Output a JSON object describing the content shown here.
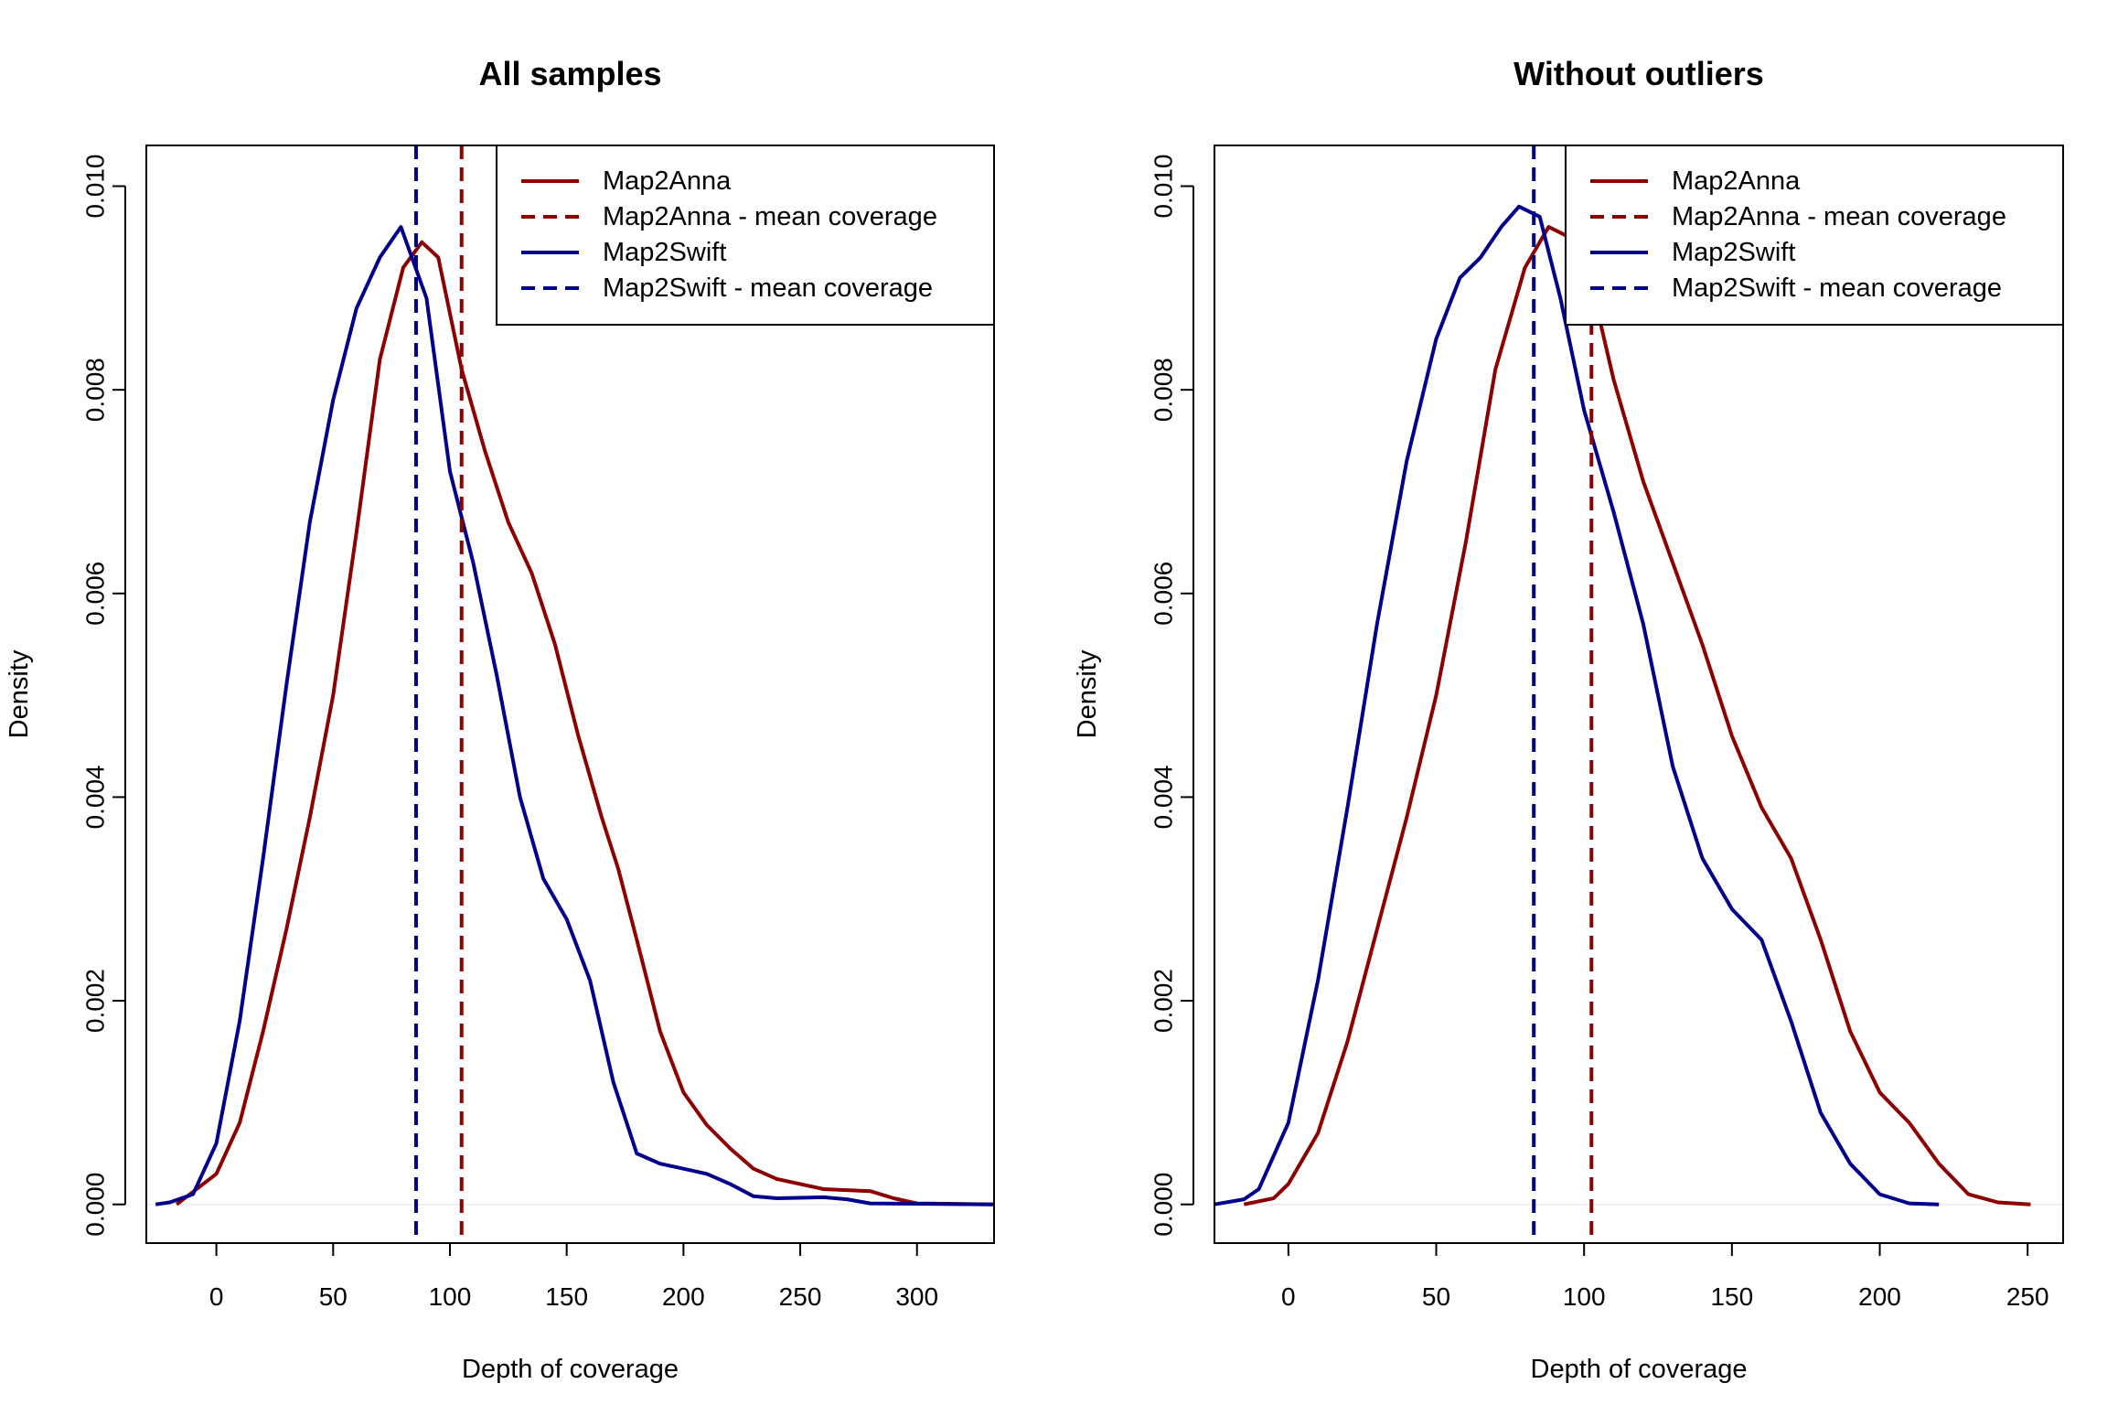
{
  "chart_data": [
    {
      "type": "line",
      "title": "All samples",
      "xlabel": "Depth of coverage",
      "ylabel": "Density",
      "xlim": [
        -30,
        333
      ],
      "ylim": [
        -0.00038,
        0.0104
      ],
      "xticks": [
        0,
        50,
        100,
        150,
        200,
        250,
        300
      ],
      "yticks": [
        0.0,
        0.002,
        0.004,
        0.006,
        0.008,
        0.01
      ],
      "xtick_labels": [
        "0",
        "50",
        "100",
        "150",
        "200",
        "250",
        "300"
      ],
      "ytick_labels": [
        "0.000",
        "0.002",
        "0.004",
        "0.006",
        "0.008",
        "0.010"
      ],
      "legend_position": "top-right",
      "legend": [
        {
          "label": "Map2Anna",
          "color": "#8B0000",
          "dash": false
        },
        {
          "label": "Map2Anna - mean coverage",
          "color": "#8B0000",
          "dash": true
        },
        {
          "label": "Map2Swift",
          "color": "#00008B",
          "dash": false
        },
        {
          "label": "Map2Swift - mean coverage",
          "color": "#00008B",
          "dash": true
        }
      ],
      "series": [
        {
          "name": "Map2Anna",
          "color": "#8B0000",
          "points": [
            [
              -17,
              0
            ],
            [
              0,
              0.0003
            ],
            [
              10,
              0.0008
            ],
            [
              20,
              0.0017
            ],
            [
              30,
              0.0027
            ],
            [
              40,
              0.0038
            ],
            [
              50,
              0.005
            ],
            [
              60,
              0.0066
            ],
            [
              70,
              0.0083
            ],
            [
              80,
              0.0092
            ],
            [
              88,
              0.00945
            ],
            [
              95,
              0.0093
            ],
            [
              105,
              0.0082
            ],
            [
              115,
              0.0074
            ],
            [
              125,
              0.0067
            ],
            [
              135,
              0.0062
            ],
            [
              145,
              0.0055
            ],
            [
              155,
              0.0046
            ],
            [
              165,
              0.0038
            ],
            [
              172,
              0.0033
            ],
            [
              180,
              0.0026
            ],
            [
              190,
              0.0017
            ],
            [
              200,
              0.0011
            ],
            [
              210,
              0.00078
            ],
            [
              220,
              0.00055
            ],
            [
              230,
              0.00035
            ],
            [
              240,
              0.00025
            ],
            [
              250,
              0.0002
            ],
            [
              260,
              0.00015
            ],
            [
              280,
              0.00013
            ],
            [
              290,
              6e-05
            ],
            [
              300,
              1e-05
            ],
            [
              333,
              0
            ]
          ]
        },
        {
          "name": "Map2Swift",
          "color": "#00008B",
          "points": [
            [
              -26,
              0
            ],
            [
              -20,
              2e-05
            ],
            [
              -10,
              0.0001
            ],
            [
              0,
              0.0006
            ],
            [
              10,
              0.0018
            ],
            [
              20,
              0.0034
            ],
            [
              30,
              0.0051
            ],
            [
              40,
              0.0067
            ],
            [
              50,
              0.0079
            ],
            [
              60,
              0.0088
            ],
            [
              70,
              0.0093
            ],
            [
              79,
              0.0096
            ],
            [
              90,
              0.0089
            ],
            [
              100,
              0.0072
            ],
            [
              110,
              0.0063
            ],
            [
              120,
              0.0052
            ],
            [
              130,
              0.004
            ],
            [
              140,
              0.0032
            ],
            [
              150,
              0.0028
            ],
            [
              160,
              0.0022
            ],
            [
              170,
              0.0012
            ],
            [
              180,
              0.0005
            ],
            [
              190,
              0.0004
            ],
            [
              200,
              0.00035
            ],
            [
              210,
              0.0003
            ],
            [
              220,
              0.0002
            ],
            [
              230,
              8e-05
            ],
            [
              240,
              6e-05
            ],
            [
              260,
              7e-05
            ],
            [
              270,
              5e-05
            ],
            [
              280,
              1e-05
            ],
            [
              333,
              0
            ]
          ]
        }
      ],
      "mean_lines": [
        {
          "name": "Map2Anna - mean coverage",
          "color": "#8B0000",
          "x": 105
        },
        {
          "name": "Map2Swift - mean coverage",
          "color": "#00008B",
          "x": 85.5
        }
      ]
    },
    {
      "type": "line",
      "title": "Without outliers",
      "xlabel": "Depth of coverage",
      "ylabel": "Density",
      "xlim": [
        -25,
        262
      ],
      "ylim": [
        -0.00038,
        0.0104
      ],
      "xticks": [
        0,
        50,
        100,
        150,
        200,
        250
      ],
      "yticks": [
        0.0,
        0.002,
        0.004,
        0.006,
        0.008,
        0.01
      ],
      "xtick_labels": [
        "0",
        "50",
        "100",
        "150",
        "200",
        "250"
      ],
      "ytick_labels": [
        "0.000",
        "0.002",
        "0.004",
        "0.006",
        "0.008",
        "0.010"
      ],
      "legend_position": "top-right",
      "legend": [
        {
          "label": "Map2Anna",
          "color": "#8B0000",
          "dash": false
        },
        {
          "label": "Map2Anna - mean coverage",
          "color": "#8B0000",
          "dash": true
        },
        {
          "label": "Map2Swift",
          "color": "#00008B",
          "dash": false
        },
        {
          "label": "Map2Swift - mean coverage",
          "color": "#00008B",
          "dash": true
        }
      ],
      "series": [
        {
          "name": "Map2Anna",
          "color": "#8B0000",
          "points": [
            [
              -15,
              0
            ],
            [
              -5,
              6e-05
            ],
            [
              0,
              0.0002
            ],
            [
              10,
              0.0007
            ],
            [
              20,
              0.0016
            ],
            [
              30,
              0.0027
            ],
            [
              40,
              0.0038
            ],
            [
              50,
              0.005
            ],
            [
              60,
              0.0065
            ],
            [
              70,
              0.0082
            ],
            [
              80,
              0.0092
            ],
            [
              88,
              0.0096
            ],
            [
              95,
              0.0095
            ],
            [
              102,
              0.0091
            ],
            [
              110,
              0.0081
            ],
            [
              120,
              0.0071
            ],
            [
              130,
              0.0063
            ],
            [
              140,
              0.0055
            ],
            [
              150,
              0.0046
            ],
            [
              160,
              0.0039
            ],
            [
              170,
              0.0034
            ],
            [
              180,
              0.0026
            ],
            [
              190,
              0.0017
            ],
            [
              200,
              0.0011
            ],
            [
              210,
              0.0008
            ],
            [
              220,
              0.0004
            ],
            [
              230,
              0.0001
            ],
            [
              240,
              2e-05
            ],
            [
              251,
              0
            ]
          ]
        },
        {
          "name": "Map2Swift",
          "color": "#00008B",
          "points": [
            [
              -25,
              0
            ],
            [
              -15,
              5e-05
            ],
            [
              -10,
              0.00015
            ],
            [
              0,
              0.0008
            ],
            [
              10,
              0.0022
            ],
            [
              20,
              0.0039
            ],
            [
              30,
              0.0057
            ],
            [
              40,
              0.0073
            ],
            [
              50,
              0.0085
            ],
            [
              58,
              0.0091
            ],
            [
              65,
              0.0093
            ],
            [
              72,
              0.0096
            ],
            [
              78,
              0.0098
            ],
            [
              85,
              0.0097
            ],
            [
              92,
              0.0089
            ],
            [
              100,
              0.0078
            ],
            [
              110,
              0.0068
            ],
            [
              120,
              0.0057
            ],
            [
              130,
              0.0043
            ],
            [
              140,
              0.0034
            ],
            [
              150,
              0.0029
            ],
            [
              160,
              0.0026
            ],
            [
              170,
              0.0018
            ],
            [
              180,
              0.0009
            ],
            [
              190,
              0.0004
            ],
            [
              200,
              0.0001
            ],
            [
              210,
              1e-05
            ],
            [
              220,
              0
            ]
          ]
        }
      ],
      "mean_lines": [
        {
          "name": "Map2Anna - mean coverage",
          "color": "#8B0000",
          "x": 102.5
        },
        {
          "name": "Map2Swift - mean coverage",
          "color": "#00008B",
          "x": 83
        }
      ]
    }
  ]
}
